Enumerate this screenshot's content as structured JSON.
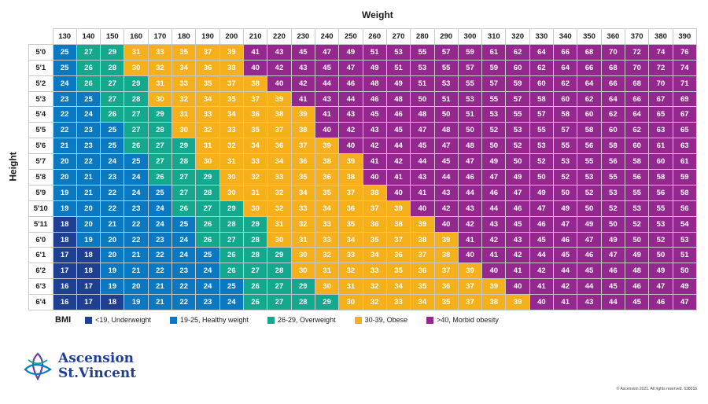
{
  "chart_data": {
    "type": "table",
    "title": "Weight",
    "ylabel": "Height",
    "weights": [
      130,
      140,
      150,
      160,
      170,
      180,
      190,
      200,
      210,
      220,
      230,
      240,
      250,
      260,
      270,
      280,
      290,
      300,
      310,
      320,
      330,
      340,
      350,
      360,
      370,
      380,
      390
    ],
    "heights": [
      "5'0",
      "5'1",
      "5'2",
      "5'3",
      "5'4",
      "5'5",
      "5'6",
      "5'7",
      "5'8",
      "5'9",
      "5'10",
      "5'11",
      "6'0",
      "6'1",
      "6'2",
      "6'3",
      "6'4"
    ],
    "values": [
      [
        25,
        27,
        29,
        31,
        33,
        35,
        37,
        39,
        41,
        43,
        45,
        47,
        49,
        51,
        53,
        55,
        57,
        59,
        61,
        62,
        64,
        66,
        68,
        70,
        72,
        74,
        76
      ],
      [
        25,
        26,
        28,
        30,
        32,
        34,
        36,
        38,
        40,
        42,
        43,
        45,
        47,
        49,
        51,
        53,
        55,
        57,
        59,
        60,
        62,
        64,
        66,
        68,
        70,
        72,
        74
      ],
      [
        24,
        26,
        27,
        29,
        31,
        33,
        35,
        37,
        38,
        40,
        42,
        44,
        46,
        48,
        49,
        51,
        53,
        55,
        57,
        59,
        60,
        62,
        64,
        66,
        68,
        70,
        71
      ],
      [
        23,
        25,
        27,
        28,
        30,
        32,
        34,
        35,
        37,
        39,
        41,
        43,
        44,
        46,
        48,
        50,
        51,
        53,
        55,
        57,
        58,
        60,
        62,
        64,
        66,
        67,
        69
      ],
      [
        22,
        24,
        26,
        27,
        29,
        31,
        33,
        34,
        36,
        38,
        39,
        41,
        43,
        45,
        46,
        48,
        50,
        51,
        53,
        55,
        57,
        58,
        60,
        62,
        64,
        65,
        67
      ],
      [
        22,
        23,
        25,
        27,
        28,
        30,
        32,
        33,
        35,
        37,
        38,
        40,
        42,
        43,
        45,
        47,
        48,
        50,
        52,
        53,
        55,
        57,
        58,
        60,
        62,
        63,
        65
      ],
      [
        21,
        23,
        25,
        26,
        27,
        29,
        31,
        32,
        34,
        36,
        37,
        39,
        40,
        42,
        44,
        45,
        47,
        48,
        50,
        52,
        53,
        55,
        56,
        58,
        60,
        61,
        63
      ],
      [
        20,
        22,
        24,
        25,
        27,
        28,
        30,
        31,
        33,
        34,
        36,
        38,
        39,
        41,
        42,
        44,
        45,
        47,
        49,
        50,
        52,
        53,
        55,
        56,
        58,
        60,
        61
      ],
      [
        20,
        21,
        23,
        24,
        26,
        27,
        29,
        30,
        32,
        33,
        35,
        36,
        38,
        40,
        41,
        43,
        44,
        46,
        47,
        49,
        50,
        52,
        53,
        55,
        56,
        58,
        59
      ],
      [
        19,
        21,
        22,
        24,
        25,
        27,
        28,
        30,
        31,
        32,
        34,
        35,
        37,
        38,
        40,
        41,
        43,
        44,
        46,
        47,
        49,
        50,
        52,
        53,
        55,
        56,
        58
      ],
      [
        19,
        20,
        22,
        23,
        24,
        26,
        27,
        29,
        30,
        32,
        33,
        34,
        36,
        37,
        39,
        40,
        42,
        43,
        44,
        46,
        47,
        49,
        50,
        52,
        53,
        55,
        56
      ],
      [
        18,
        20,
        21,
        22,
        24,
        25,
        26,
        28,
        29,
        31,
        32,
        33,
        35,
        36,
        38,
        39,
        40,
        42,
        43,
        45,
        46,
        47,
        49,
        50,
        52,
        53,
        54
      ],
      [
        18,
        19,
        20,
        22,
        23,
        24,
        26,
        27,
        28,
        30,
        31,
        33,
        34,
        35,
        37,
        38,
        39,
        41,
        42,
        43,
        45,
        46,
        47,
        49,
        50,
        52,
        53
      ],
      [
        17,
        18,
        20,
        21,
        22,
        24,
        25,
        26,
        28,
        29,
        30,
        32,
        33,
        34,
        36,
        37,
        38,
        40,
        41,
        42,
        44,
        45,
        46,
        47,
        49,
        50,
        51
      ],
      [
        17,
        18,
        19,
        21,
        22,
        23,
        24,
        26,
        27,
        28,
        30,
        31,
        32,
        33,
        35,
        36,
        37,
        39,
        40,
        41,
        42,
        44,
        45,
        46,
        48,
        49,
        50
      ],
      [
        16,
        17,
        19,
        20,
        21,
        22,
        24,
        25,
        26,
        27,
        29,
        30,
        31,
        32,
        34,
        35,
        36,
        37,
        39,
        40,
        41,
        42,
        44,
        45,
        46,
        47,
        49
      ],
      [
        16,
        17,
        18,
        19,
        21,
        22,
        23,
        24,
        26,
        27,
        28,
        29,
        30,
        32,
        33,
        34,
        35,
        37,
        38,
        39,
        40,
        41,
        43,
        44,
        45,
        46,
        47
      ]
    ],
    "categories": [
      {
        "label": "<19, Underweight",
        "color": "#1f3f93",
        "class": "c-under",
        "max": 18
      },
      {
        "label": "19-25, Healthy weight",
        "color": "#0a79c1",
        "class": "c-healthy",
        "max": 25
      },
      {
        "label": "26-29, Overweight",
        "color": "#14a98e",
        "class": "c-over",
        "max": 29
      },
      {
        "label": "30-39, Obese",
        "color": "#f5b01b",
        "class": "c-obese",
        "max": 39
      },
      {
        "label": ">40, Morbid obesity",
        "color": "#94288f",
        "class": "c-morbid",
        "max": 999
      }
    ],
    "legend_title": "BMI"
  },
  "brand": {
    "line1": "Ascension",
    "line2": "St.Vincent",
    "color": "#1f3f93"
  },
  "footer": {
    "copyright": "© Ascension 2021. All rights reserved. 63801b"
  }
}
